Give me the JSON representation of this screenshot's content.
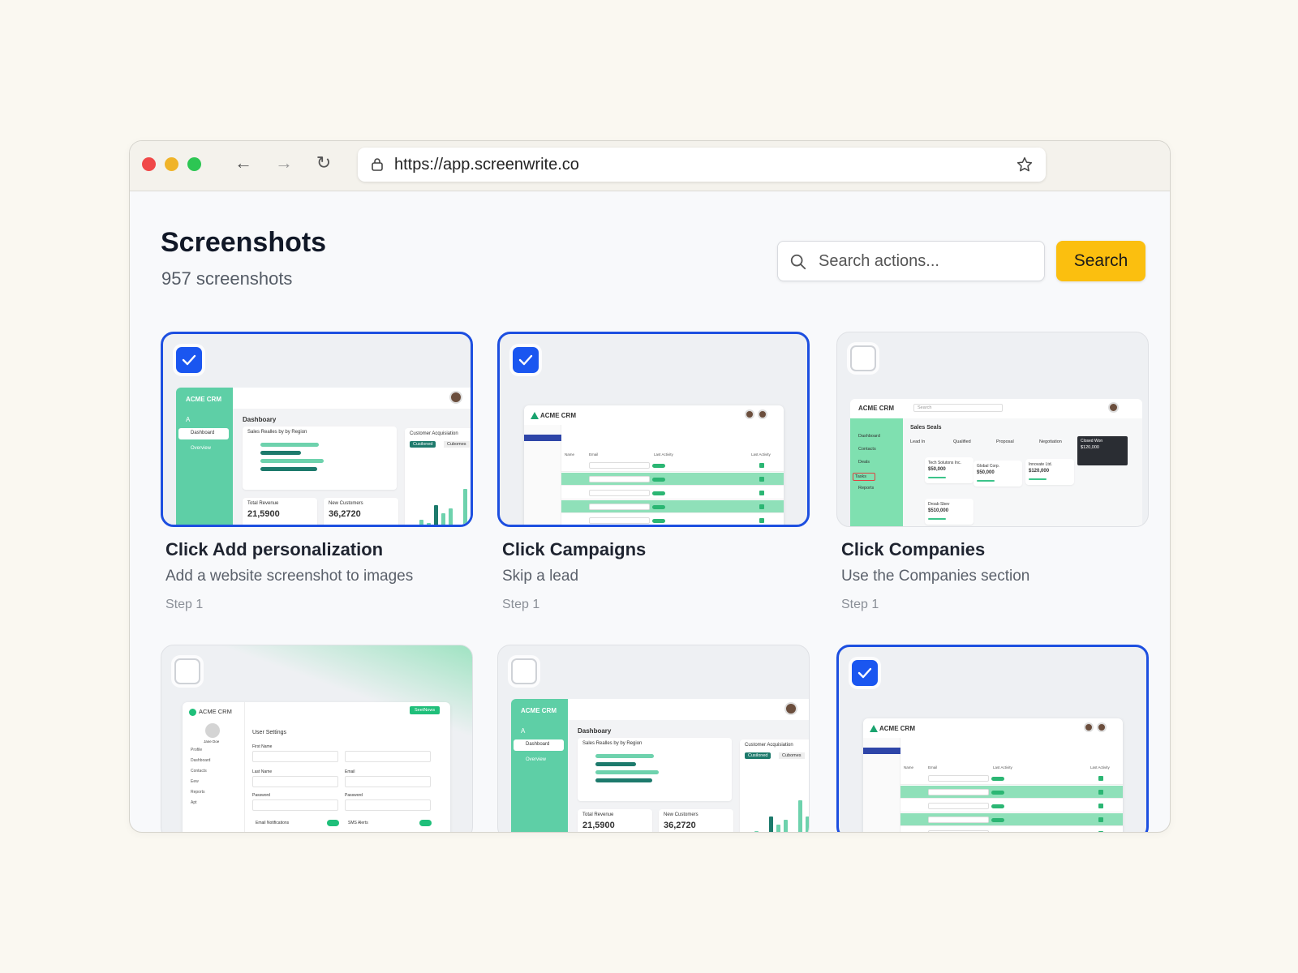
{
  "browser": {
    "url": "https://app.screenwrite.co",
    "icons": [
      "back-arrow-icon",
      "forward-arrow-icon",
      "reload-icon",
      "lock-icon",
      "star-icon"
    ],
    "traffic_lights": [
      "#f04848",
      "#f0b429",
      "#2dc653"
    ]
  },
  "header": {
    "title": "Screenshots",
    "count_label": "957 screenshots"
  },
  "search": {
    "placeholder": "Search actions...",
    "value": "",
    "button_label": "Search",
    "button_color": "#fbbf0f"
  },
  "accent": "#1d4fe0",
  "cards": [
    {
      "title": "Click Add personalization",
      "description": "Add a website screenshot to images",
      "step": "Step 1",
      "selected": true,
      "thumb": {
        "type": "dashboard",
        "brand": "ACME CRM",
        "page": "Dashboary",
        "nav": [
          "Dashboard",
          "Overview"
        ],
        "chart_title": "Sales Realles by by Region",
        "side_title": "Customer Acquisiation",
        "tabs": [
          "Cusiloned",
          "Cubomes"
        ],
        "kpis": [
          {
            "label": "Total Revenue",
            "value": "21,5900"
          },
          {
            "label": "New Customers",
            "value": "36,2720"
          }
        ]
      }
    },
    {
      "title": "Click Campaigns",
      "description": "Skip a lead",
      "step": "Step 1",
      "selected": true,
      "thumb": {
        "type": "table",
        "brand": "ACME CRM",
        "columns": [
          "Name",
          "Email",
          "Last Activity",
          "Last Activity"
        ]
      }
    },
    {
      "title": "Click Companies",
      "description": "Use the Companies section",
      "step": "Step 1",
      "selected": false,
      "thumb": {
        "type": "pipeline",
        "brand": "ACME CRM",
        "search": "Search",
        "page": "Sales Seals",
        "nav": [
          "Dashboard",
          "Contacts",
          "Deals",
          "Tasks",
          "Reports"
        ],
        "stages": [
          "Lead In",
          "Qualified",
          "Proposal",
          "Negotiation"
        ],
        "deals": [
          {
            "name": "Tech Solutons Inc.",
            "value": "$50,000"
          },
          {
            "name": "Global Corp.",
            "value": "$50,000"
          },
          {
            "name": "Innovate Ltd.",
            "value": "$120,000"
          },
          {
            "name": "Droab Sbev",
            "value": "$510,000"
          }
        ],
        "won": {
          "label": "Closed Won",
          "value": "$120,000"
        }
      }
    },
    {
      "title": "",
      "description": "",
      "step": "",
      "selected": false,
      "thumb": {
        "type": "settings",
        "brand": "ACME CRM",
        "user": "Jane Doe",
        "page": "User Settings",
        "button": "SeetNows",
        "nav": [
          "Profile",
          "Dashboard",
          "Contacts",
          "Eew",
          "Reports",
          "Apt"
        ],
        "fields": [
          "First Name",
          "Last Name",
          "Email",
          "Password",
          "Password"
        ],
        "toggles": [
          "Email Notifications",
          "SMS Alerts"
        ]
      }
    },
    {
      "title": "",
      "description": "",
      "step": "",
      "selected": false,
      "thumb": {
        "type": "dashboard",
        "brand": "ACME CRM",
        "page": "Dashboary",
        "nav": [
          "Dashboard",
          "Overview"
        ],
        "chart_title": "Sales Realles by by Region",
        "side_title": "Customer Acquisiation",
        "tabs": [
          "Cusiloned",
          "Cubomes"
        ],
        "kpis": [
          {
            "label": "Total Revenue",
            "value": "21,5900"
          },
          {
            "label": "New Customers",
            "value": "36,2720"
          }
        ]
      }
    },
    {
      "title": "",
      "description": "",
      "step": "",
      "selected": true,
      "thumb": {
        "type": "table",
        "brand": "ACME CRM",
        "columns": [
          "Name",
          "Email",
          "Last Activity",
          "Last Activity"
        ]
      }
    }
  ]
}
